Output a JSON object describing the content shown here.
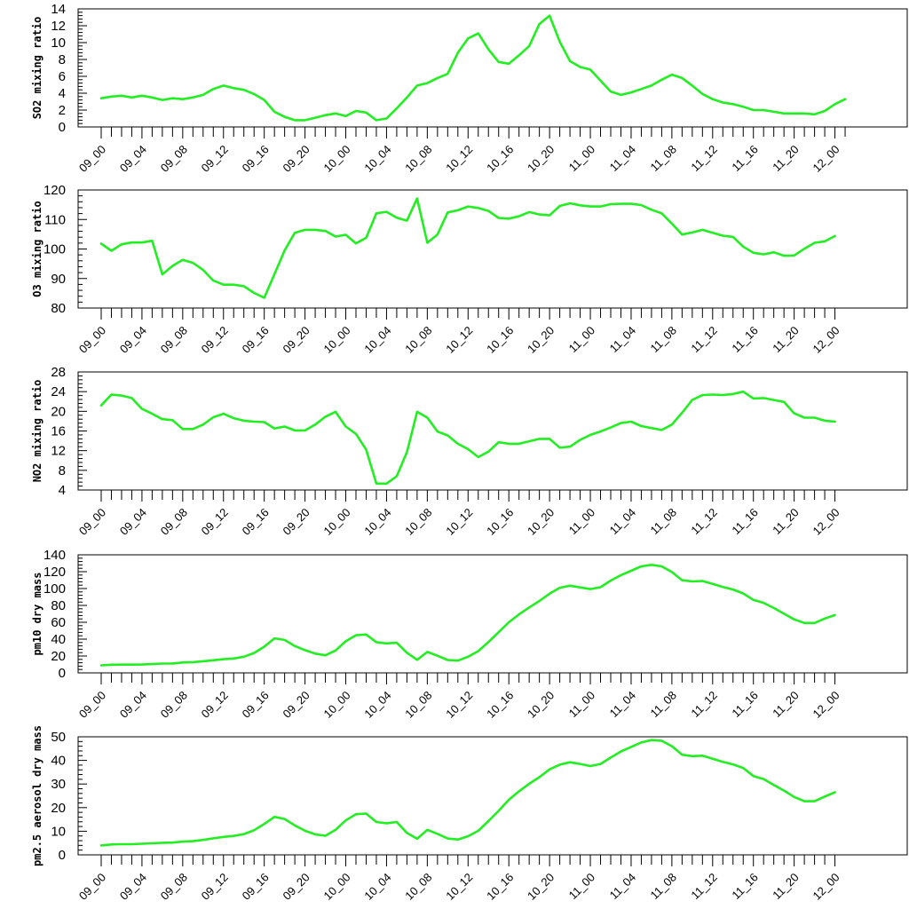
{
  "chart_data": [
    {
      "type": "line",
      "ylabel": "SO2 mixing ratio",
      "ylim": [
        0,
        14
      ],
      "yticks": [
        0,
        2,
        4,
        6,
        8,
        10,
        12,
        14
      ],
      "x_tick_labels": [
        "09_00",
        "09_04",
        "09_08",
        "09_12",
        "09_16",
        "09_20",
        "10_00",
        "10_04",
        "10_08",
        "10_12",
        "10_16",
        "10_20",
        "11_00",
        "11_04",
        "11_08",
        "11_12",
        "11_16",
        "11_20",
        "12_00"
      ],
      "color": "#22ee22",
      "values": [
        3.4,
        3.6,
        3.7,
        3.5,
        3.7,
        3.5,
        3.2,
        3.4,
        3.3,
        3.5,
        3.8,
        4.5,
        4.9,
        4.6,
        4.4,
        3.9,
        3.2,
        1.8,
        1.2,
        0.8,
        0.8,
        1.1,
        1.4,
        1.6,
        1.3,
        1.9,
        1.7,
        0.8,
        1.0,
        2.2,
        3.5,
        4.9,
        5.2,
        5.8,
        6.3,
        8.8,
        10.5,
        11.1,
        9.2,
        7.7,
        7.5,
        8.5,
        9.6,
        12.2,
        13.2,
        10.1,
        7.8,
        7.1,
        6.8,
        5.5,
        4.2,
        3.8,
        4.1,
        4.5,
        4.9,
        5.6,
        6.2,
        5.8,
        4.9,
        3.9,
        3.3,
        2.9,
        2.7,
        2.4,
        2.0,
        2.0,
        1.8,
        1.6,
        1.6,
        1.6,
        1.5,
        1.9,
        2.7,
        3.3
      ]
    },
    {
      "type": "line",
      "ylabel": "O3 mixing ratio",
      "ylim": [
        80,
        120
      ],
      "yticks": [
        80,
        90,
        100,
        110,
        120
      ],
      "x_tick_labels": [
        "09_00",
        "09_04",
        "09_08",
        "09_12",
        "09_16",
        "09_20",
        "10_00",
        "10_04",
        "10_08",
        "10_12",
        "10_16",
        "10_20",
        "11_00",
        "11_04",
        "11_08",
        "11_12",
        "11_16",
        "11_20",
        "12_00"
      ],
      "color": "#22ee22",
      "values": [
        101.8,
        99.4,
        101.6,
        102.2,
        102.2,
        102.8,
        91.4,
        94.3,
        96.3,
        95.3,
        92.9,
        89.3,
        87.9,
        87.9,
        87.4,
        85.1,
        83.5,
        91.5,
        99.5,
        105.5,
        106.5,
        106.5,
        106.1,
        104.2,
        104.8,
        101.9,
        103.8,
        112.1,
        112.6,
        110.6,
        109.6,
        117.1,
        102.1,
        104.9,
        112.4,
        113.1,
        114.4,
        113.9,
        112.9,
        110.5,
        110.3,
        111.1,
        112.5,
        111.7,
        111.4,
        114.6,
        115.5,
        114.8,
        114.4,
        114.4,
        115.2,
        115.3,
        115.3,
        114.9,
        113.3,
        112.1,
        108.6,
        104.9,
        105.6,
        106.5,
        105.5,
        104.5,
        104.1,
        100.8,
        98.7,
        98.2,
        98.9,
        97.7,
        97.8,
        100.1,
        102.1,
        102.6,
        104.4
      ]
    },
    {
      "type": "line",
      "ylabel": "NO2 mixing ratio",
      "ylim": [
        4,
        28
      ],
      "yticks": [
        4,
        8,
        12,
        16,
        20,
        24,
        28
      ],
      "x_tick_labels": [
        "09_00",
        "09_04",
        "09_08",
        "09_12",
        "09_16",
        "09_20",
        "10_00",
        "10_04",
        "10_08",
        "10_12",
        "10_16",
        "10_20",
        "11_00",
        "11_04",
        "11_08",
        "11_12",
        "11_16",
        "11_20",
        "12_00"
      ],
      "color": "#22ee22",
      "values": [
        21.2,
        23.4,
        23.2,
        22.7,
        20.5,
        19.5,
        18.4,
        18.2,
        16.4,
        16.4,
        17.3,
        18.8,
        19.5,
        18.6,
        18.1,
        17.9,
        17.8,
        16.5,
        16.9,
        16.1,
        16.1,
        17.3,
        18.9,
        19.9,
        16.9,
        15.4,
        12.2,
        5.3,
        5.3,
        6.8,
        11.7,
        19.9,
        18.7,
        15.9,
        15.1,
        13.4,
        12.3,
        10.7,
        11.8,
        13.7,
        13.4,
        13.4,
        13.9,
        14.4,
        14.4,
        12.6,
        12.8,
        14.2,
        15.2,
        15.9,
        16.7,
        17.6,
        17.9,
        17.0,
        16.6,
        16.2,
        17.3,
        19.7,
        22.3,
        23.3,
        23.4,
        23.3,
        23.5,
        24.0,
        22.6,
        22.7,
        22.3,
        21.9,
        19.6,
        18.7,
        18.7,
        18.1,
        17.9
      ]
    },
    {
      "type": "line",
      "ylabel": "pm10 dry mass",
      "ylim": [
        0,
        140
      ],
      "yticks": [
        0,
        20,
        40,
        60,
        80,
        100,
        120,
        140
      ],
      "x_tick_labels": [
        "09_00",
        "09_04",
        "09_08",
        "09_12",
        "09_16",
        "09_20",
        "10_00",
        "10_04",
        "10_08",
        "10_12",
        "10_16",
        "10_20",
        "11_00",
        "11_04",
        "11_08",
        "11_12",
        "11_16",
        "11_20",
        "12_00"
      ],
      "color": "#22ee22",
      "values": [
        9,
        9.7,
        9.8,
        9.8,
        9.9,
        10.4,
        11,
        11.2,
        12.3,
        12.7,
        13.8,
        15,
        16.2,
        17.1,
        19.2,
        23.6,
        31,
        40.9,
        39.1,
        31.9,
        27,
        22.8,
        20.8,
        26.5,
        37.5,
        44.6,
        45.5,
        36.4,
        35,
        35.7,
        23.9,
        15.5,
        24.8,
        20.3,
        15.3,
        14.5,
        19.2,
        25.8,
        36.5,
        48.2,
        60,
        69.4,
        77.6,
        85.3,
        93.9,
        100.9,
        103.4,
        101.4,
        99.4,
        101.6,
        109.5,
        115.9,
        121.1,
        126.3,
        128.1,
        126.3,
        119.6,
        109.9,
        108.4,
        108.9,
        105.6,
        101.9,
        98.8,
        94.2,
        86.5,
        83.1,
        76.9,
        70.1,
        63.5,
        59.2,
        59.2,
        64.4,
        68.5
      ]
    },
    {
      "type": "line",
      "ylabel": "pm2.5 aerosol dry mass",
      "ylim": [
        0,
        50
      ],
      "yticks": [
        0,
        10,
        20,
        30,
        40,
        50
      ],
      "x_tick_labels": [
        "09_00",
        "09_04",
        "09_08",
        "09_12",
        "09_16",
        "09_20",
        "10_00",
        "10_04",
        "10_08",
        "10_12",
        "10_16",
        "10_20",
        "11_00",
        "11_04",
        "11_08",
        "11_12",
        "11_16",
        "11_20",
        "12_00"
      ],
      "color": "#22ee22",
      "values": [
        4,
        4.4,
        4.5,
        4.5,
        4.7,
        4.9,
        5.1,
        5.2,
        5.6,
        5.8,
        6.3,
        7,
        7.6,
        8,
        8.8,
        10.4,
        13.1,
        16.1,
        15.2,
        12.5,
        10.2,
        8.7,
        8.1,
        10.6,
        14.6,
        17.2,
        17.5,
        13.9,
        13.4,
        13.9,
        9.3,
        6.8,
        10.6,
        8.9,
        6.9,
        6.5,
        7.9,
        10.2,
        14.3,
        18.6,
        23.3,
        26.9,
        30.1,
        32.9,
        36.2,
        38.2,
        39.2,
        38.5,
        37.6,
        38.5,
        41.2,
        43.8,
        45.7,
        47.6,
        48.6,
        48.3,
        46,
        42.4,
        41.8,
        42,
        40.7,
        39.4,
        38.3,
        36.8,
        33.4,
        32.1,
        29.6,
        27.2,
        24.5,
        22.7,
        22.7,
        24.7,
        26.5
      ]
    }
  ]
}
